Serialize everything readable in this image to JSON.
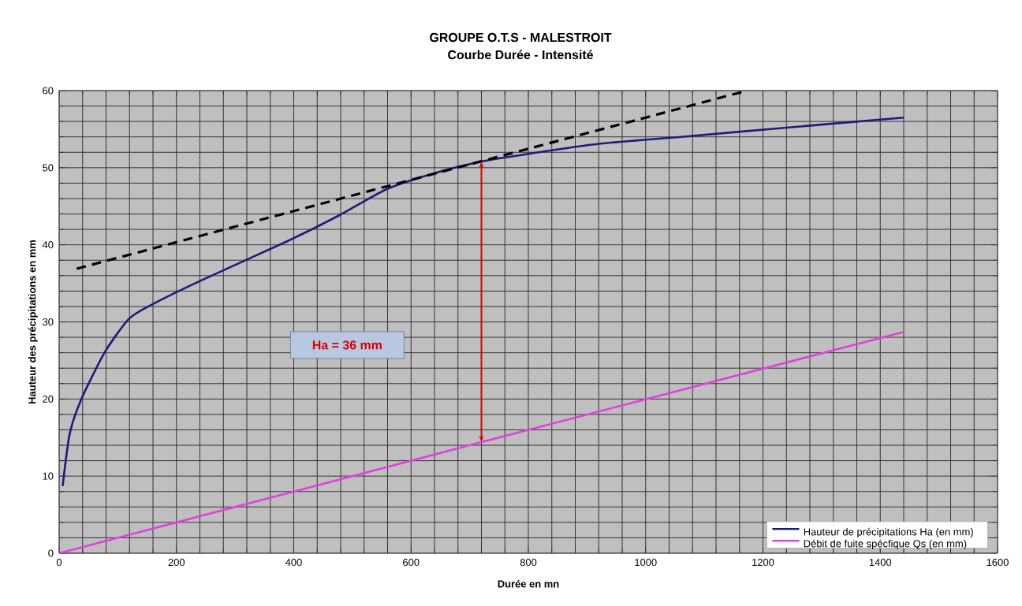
{
  "chart_data": {
    "type": "line",
    "title": "GROUPE O.T.S - MALESTROIT",
    "subtitle": "Courbe Durée - Intensité",
    "xlabel": "Durée en mn",
    "ylabel": "Hauteur des précipitations en mm",
    "xlim": [
      0,
      1600
    ],
    "xticks": [
      0,
      200,
      400,
      600,
      800,
      1000,
      1200,
      1400,
      1600
    ],
    "ylim": [
      0,
      60
    ],
    "yticks": [
      0,
      10,
      20,
      30,
      40,
      50,
      60
    ],
    "grid": true,
    "legend": "bottom right",
    "series": [
      {
        "name": "Hauteur de précipitations Ha (en mm)",
        "color": "#1c1c7c",
        "x": [
          6,
          18,
          38,
          78,
          119,
          157,
          240,
          390,
          477,
          558,
          640,
          720,
          800,
          920,
          1060,
          1240,
          1440
        ],
        "values": [
          8.7,
          15.5,
          20,
          26.1,
          30.4,
          32.2,
          35.3,
          40.5,
          43.8,
          47.2,
          49.3,
          50.8,
          51.8,
          53.1,
          54.0,
          55.2,
          56.5
        ]
      },
      {
        "name": "Débit de fuite spécfique Qs (en mm)",
        "color": "#e040e0",
        "x": [
          0,
          720,
          1440
        ],
        "values": [
          0,
          14.4,
          28.7
        ]
      },
      {
        "color": "#000000",
        "line_style": "dashed",
        "x": [
          30,
          1173
        ],
        "values": [
          36.9,
          60
        ]
      }
    ],
    "annotations": [
      "Ha = 36 mm"
    ]
  }
}
